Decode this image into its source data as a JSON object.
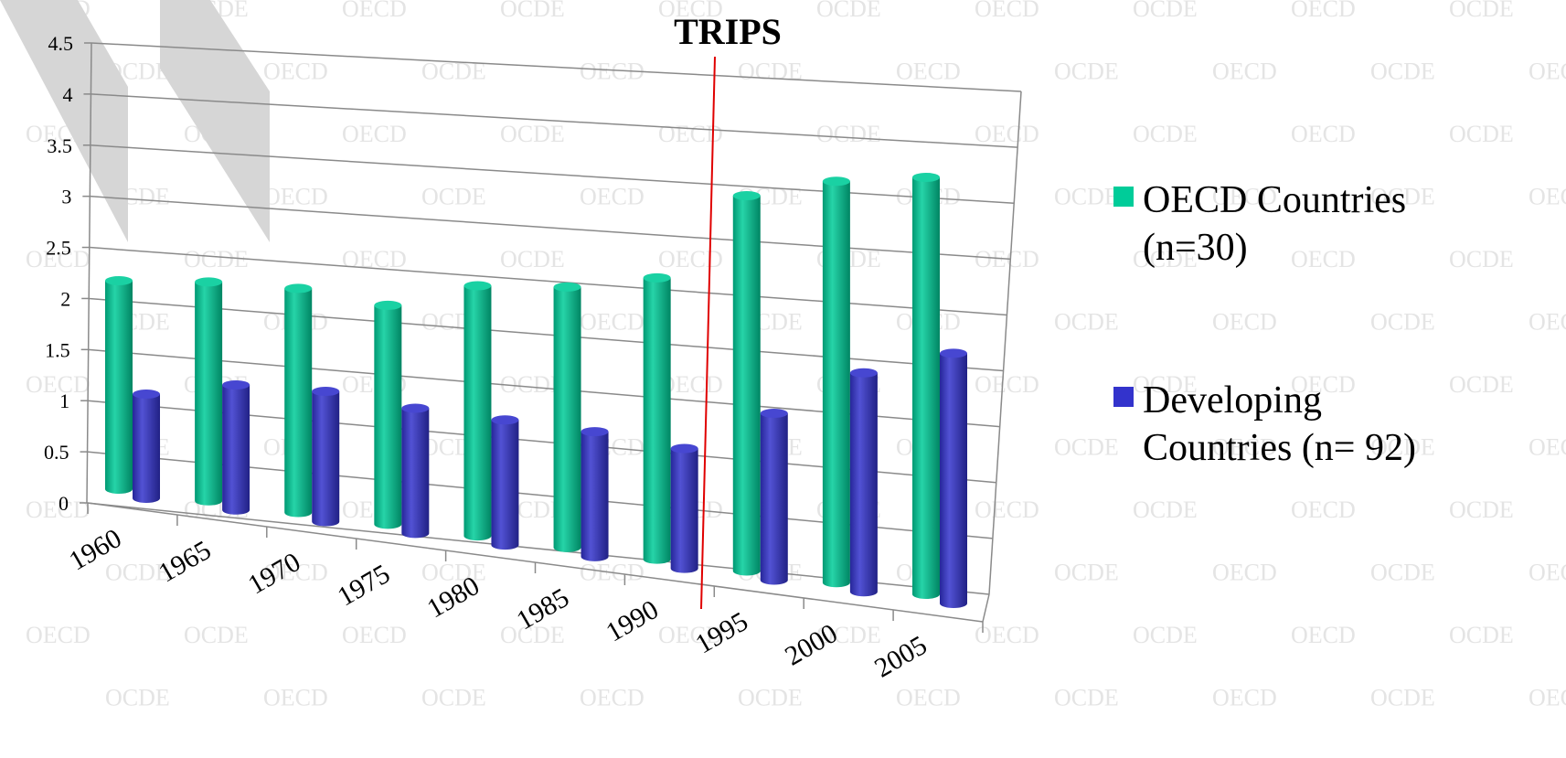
{
  "chart_data": {
    "type": "bar",
    "title": "",
    "xlabel": "",
    "ylabel": "",
    "categories": [
      "1960",
      "1965",
      "1970",
      "1975",
      "1980",
      "1985",
      "1990",
      "1995",
      "2000",
      "2005"
    ],
    "series": [
      {
        "name_lines": [
          "OECD Countries",
          "(n=30)"
        ],
        "color": "#00cc99",
        "values": [
          2.0,
          2.1,
          2.15,
          2.1,
          2.4,
          2.5,
          2.7,
          3.6,
          3.85,
          4.0
        ]
      },
      {
        "name_lines": [
          "Developing",
          "Countries (n= 92)"
        ],
        "color": "#3333cc",
        "values": [
          1.0,
          1.2,
          1.25,
          1.2,
          1.2,
          1.2,
          1.15,
          1.6,
          2.1,
          2.4
        ]
      }
    ],
    "ylim": [
      0,
      4.5
    ],
    "yticks": [
      "0",
      "0.5",
      "1",
      "1.5",
      "2",
      "2.5",
      "3",
      "3.5",
      "4",
      "4.5"
    ],
    "grid": true,
    "legend_position": "right",
    "annotation": {
      "label": "TRIPS",
      "category_position": "between 1990 and 1995"
    },
    "watermark_words": [
      "OECD",
      "OCDE"
    ]
  }
}
